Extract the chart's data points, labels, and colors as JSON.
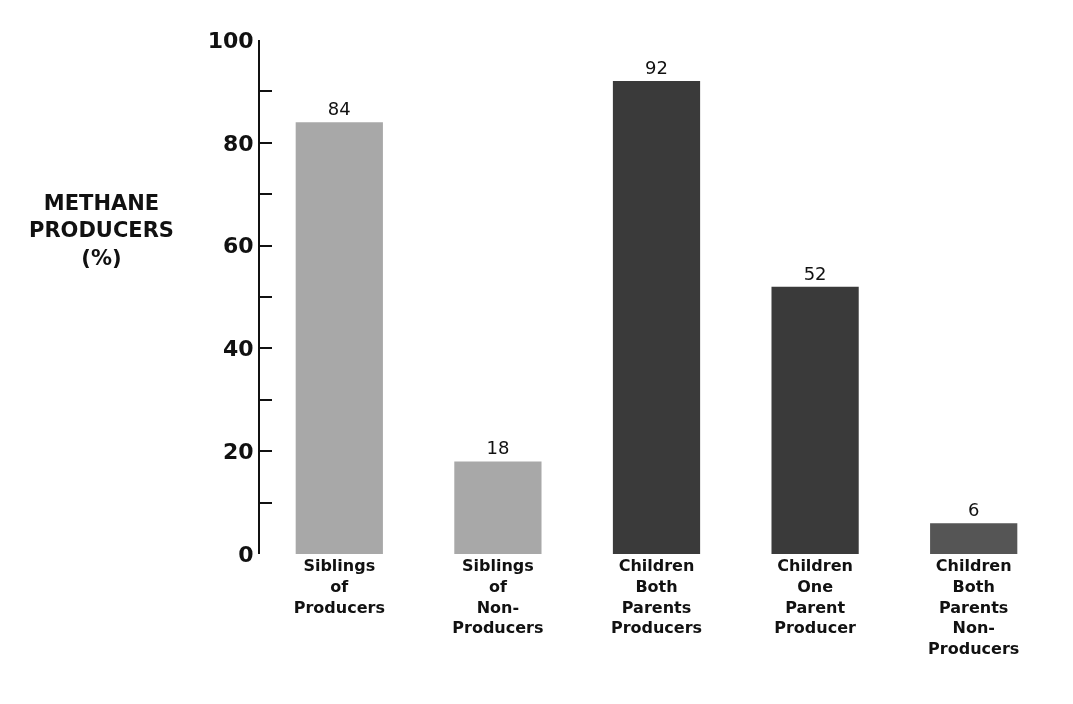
{
  "chart_data": {
    "type": "bar",
    "ylabel": "METHANE\nPRODUCERS\n(%)",
    "categories": [
      "Siblings\nof\nProducers",
      "Siblings\nof\nNon-\nProducers",
      "Children\nBoth\nParents\nProducers",
      "Children\nOne\nParent\nProducer",
      "Children\nBoth\nParents\nNon-\nProducers"
    ],
    "values": [
      84,
      18,
      92,
      52,
      6
    ],
    "colors": [
      "#a8a8a8",
      "#a8a8a8",
      "#3a3a3a",
      "#3a3a3a",
      "#555555"
    ],
    "ylim": [
      0,
      100
    ],
    "yticks": [
      0,
      {
        "value": 10,
        "label": null
      },
      20,
      {
        "value": 30,
        "label": null
      },
      40,
      {
        "value": 50,
        "label": null
      },
      60,
      {
        "value": 70,
        "label": null
      },
      80,
      {
        "value": 90,
        "label": null
      },
      100
    ],
    "data_labels": true,
    "grid": false
  }
}
